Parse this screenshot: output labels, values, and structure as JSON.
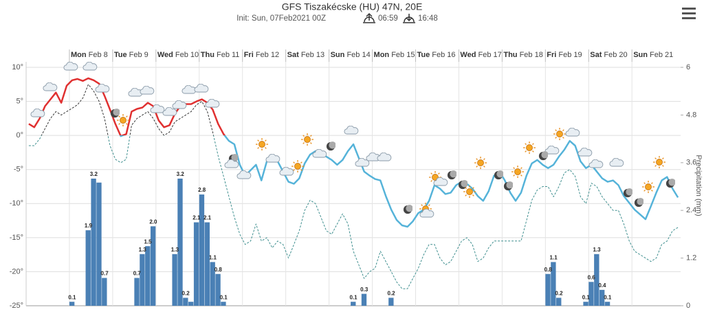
{
  "chart_data": {
    "type": "line",
    "title": "GFS Tiszakécske (HU) 47N, 20E",
    "subtitle": "Init: Sun, 07Feb2021 00Z",
    "sunrise": "06:59",
    "sunset": "16:48",
    "y2label": "Precipitation (mm)",
    "categories": [
      null,
      null,
      null,
      null,
      null,
      null,
      null,
      null,
      "Mon Feb 8",
      null,
      null,
      null,
      null,
      null,
      null,
      null,
      "Tue Feb 9",
      null,
      null,
      null,
      null,
      null,
      null,
      null,
      "Wed Feb 10",
      null,
      null,
      null,
      null,
      null,
      null,
      null,
      "Thu Feb 11",
      null,
      null,
      null,
      null,
      null,
      null,
      null,
      "Fri Feb 12",
      null,
      null,
      null,
      null,
      null,
      null,
      null,
      "Sat Feb 13",
      null,
      null,
      null,
      null,
      null,
      null,
      null,
      "Sun Feb 14",
      null,
      null,
      null,
      null,
      null,
      null,
      null,
      "Mon Feb 15",
      null,
      null,
      null,
      null,
      null,
      null,
      null,
      "Tue Feb 16",
      null,
      null,
      null,
      null,
      null,
      null,
      null,
      "Wed Feb 17",
      null,
      null,
      null,
      null,
      null,
      null,
      null,
      "Thu Feb 18",
      null,
      null,
      null,
      null,
      null,
      null,
      null,
      "Fri Feb 19",
      null,
      null,
      null,
      null,
      null,
      null,
      null,
      "Sat Feb 20",
      null,
      null,
      null,
      null,
      null,
      null,
      null,
      "Sun Feb 21",
      null,
      null,
      null,
      null,
      null,
      null,
      null,
      null
    ],
    "ylim": [
      -25,
      10
    ],
    "yticks": [
      {
        "value": 10,
        "label": "10°"
      },
      {
        "value": 5,
        "label": "5°"
      },
      {
        "value": 0,
        "label": "0°"
      },
      {
        "value": -5,
        "label": "-5°"
      },
      {
        "value": -10,
        "label": "-10°"
      },
      {
        "value": -15,
        "label": "-15°"
      },
      {
        "value": -20,
        "label": "-20°"
      },
      {
        "value": -25,
        "label": "-25°"
      }
    ],
    "y2lim": [
      0,
      6
    ],
    "y2ticks": [
      0,
      1.2,
      2.4,
      3.6,
      4.8,
      6
    ],
    "grid": true,
    "series": [
      {
        "color_above": "#e03030",
        "color_below": "#55b3d9",
        "width": 2.5,
        "values": [
          1.7,
          1.2,
          2.5,
          4.3,
          5.3,
          6.3,
          4.8,
          7.3,
          8.1,
          8.3,
          8.0,
          8.4,
          8.1,
          7.6,
          5.8,
          3.8,
          1.7,
          -0.1,
          0.2,
          3.5,
          3.9,
          4.1,
          4.8,
          4.3,
          2.2,
          1.2,
          1.5,
          3.2,
          4.3,
          4.6,
          4.6,
          5.0,
          5.3,
          4.8,
          3.8,
          1.7,
          0.2,
          -0.8,
          -1.3,
          -4.3,
          -5.9,
          -5.1,
          -4.3,
          -6.6,
          -3.8,
          -3.1,
          -3.8,
          -5.3,
          -6.8,
          -7.1,
          -6.3,
          -4.1,
          -2.8,
          -2.3,
          -2.8,
          -3.1,
          -3.6,
          -4.3,
          -3.6,
          -2.3,
          -1.3,
          -3.3,
          -5.3,
          -5.9,
          -6.4,
          -6.6,
          -8.9,
          -10.9,
          -12.4,
          -13.2,
          -13.4,
          -12.6,
          -11.4,
          -10.9,
          -9.6,
          -7.3,
          -7.8,
          -8.6,
          -8.4,
          -7.3,
          -6.8,
          -7.1,
          -7.8,
          -8.9,
          -9.6,
          -8.2,
          -5.9,
          -5.3,
          -6.6,
          -8.4,
          -9.6,
          -8.4,
          -5.9,
          -4.1,
          -3.6,
          -4.3,
          -4.8,
          -4.3,
          -3.1,
          -2.1,
          -0.8,
          -1.5,
          -3.8,
          -4.8,
          -4.3,
          -5.3,
          -6.3,
          -6.8,
          -6.6,
          -7.3,
          -8.9,
          -9.9,
          -10.9,
          -11.6,
          -12.3,
          -10.4,
          -8.4,
          -6.6,
          -6.1,
          -7.8,
          -9.1
        ]
      },
      {
        "color_above": "#333333",
        "color_below": "#3f8f8f",
        "width": 1,
        "dashed": true,
        "values": [
          -1.5,
          -1.5,
          -0.5,
          1,
          2.5,
          3.5,
          3.0,
          3.5,
          4.0,
          4.5,
          5.5,
          7.5,
          6.5,
          5.0,
          2.5,
          -1.5,
          -3.5,
          -4,
          -3.5,
          1.5,
          2.5,
          3.0,
          3.5,
          2.5,
          1.0,
          0,
          0.5,
          2.0,
          2.5,
          3.0,
          3.5,
          4.5,
          5.0,
          3.5,
          0.5,
          -3,
          -6,
          -9,
          -12,
          -14.5,
          -16,
          -15.5,
          -13,
          -15.5,
          -15,
          -16.5,
          -15.5,
          -16,
          -18,
          -16,
          -14,
          -11,
          -9.5,
          -10,
          -12,
          -14,
          -14.5,
          -13,
          -11.5,
          -13,
          -17,
          -19,
          -21,
          -20,
          -19.5,
          -17,
          -18.5,
          -20,
          -21.5,
          -22.5,
          -22.5,
          -21,
          -19.5,
          -17.5,
          -16,
          -16,
          -18,
          -19,
          -18.5,
          -17,
          -15.5,
          -15,
          -16,
          -18.5,
          -18,
          -16.5,
          -15.5,
          -15.5,
          -15.5,
          -15.5,
          -15.5,
          -15.5,
          -12.5,
          -9.5,
          -8,
          -7.5,
          -7.5,
          -9,
          -7.5,
          -5.5,
          -5,
          -6,
          -9,
          -10,
          -7,
          -7.5,
          -9,
          -10,
          -11,
          -11,
          -13,
          -15.5,
          -17,
          -17.5,
          -18,
          -18.5,
          -18,
          -16,
          -15.5,
          -14,
          -13.5
        ]
      },
      {
        "type": "bar",
        "axis": "y2",
        "color": "#4a80b5",
        "values": [
          0,
          0,
          0,
          0,
          0,
          0,
          0,
          0,
          0.1,
          0,
          0,
          1.9,
          3.2,
          3.1,
          0.7,
          0,
          0,
          0,
          0,
          0,
          0.7,
          1.3,
          1.5,
          2.0,
          0,
          0,
          0,
          1.3,
          3.2,
          0.2,
          0.1,
          2.1,
          2.8,
          2.1,
          1.1,
          0.8,
          0.1,
          0,
          0,
          0,
          0,
          0,
          0,
          0,
          0,
          0,
          0,
          0,
          0,
          0,
          0,
          0,
          0,
          0,
          0,
          0,
          0,
          0,
          0,
          0,
          0.1,
          0,
          0.3,
          0,
          0,
          0,
          0,
          0.2,
          0,
          0,
          0,
          0,
          0,
          0,
          0,
          0,
          0,
          0,
          0,
          0,
          0,
          0,
          0,
          0,
          0,
          0,
          0,
          0,
          0,
          0,
          0,
          0,
          0,
          0,
          0,
          0,
          0.8,
          1.1,
          0.2,
          0,
          0,
          0,
          0,
          0.1,
          0.6,
          1.3,
          0.4,
          0.1,
          0,
          0,
          0,
          0,
          0,
          0,
          0,
          0,
          0,
          0,
          0,
          0,
          0
        ],
        "value_labels": [
          null,
          null,
          null,
          null,
          null,
          null,
          null,
          null,
          "0.1",
          null,
          null,
          "1.9",
          "3.2",
          null,
          "0.7",
          null,
          null,
          null,
          null,
          null,
          "0.7",
          "1.3",
          "1.5",
          "2.0",
          null,
          null,
          null,
          "1.3",
          "3.2",
          "0.2",
          null,
          "2.1",
          "2.8",
          "2.1",
          "1.1",
          "0.8",
          "0.1",
          null,
          null,
          null,
          null,
          null,
          null,
          null,
          null,
          null,
          null,
          null,
          null,
          null,
          null,
          null,
          null,
          null,
          null,
          null,
          null,
          null,
          null,
          null,
          "0.1",
          null,
          "0.3",
          null,
          null,
          null,
          null,
          "0.2",
          null,
          null,
          null,
          null,
          null,
          null,
          null,
          null,
          null,
          null,
          null,
          null,
          null,
          null,
          null,
          null,
          null,
          null,
          null,
          null,
          null,
          null,
          null,
          null,
          null,
          null,
          null,
          null,
          "0.8",
          "1.1",
          "0.2",
          null,
          null,
          null,
          null,
          "0.1",
          "0.6",
          "1.3",
          "0.4",
          "0.1",
          null,
          null,
          null,
          null,
          null,
          null,
          null,
          null,
          null,
          null,
          null,
          null,
          null
        ]
      }
    ]
  }
}
